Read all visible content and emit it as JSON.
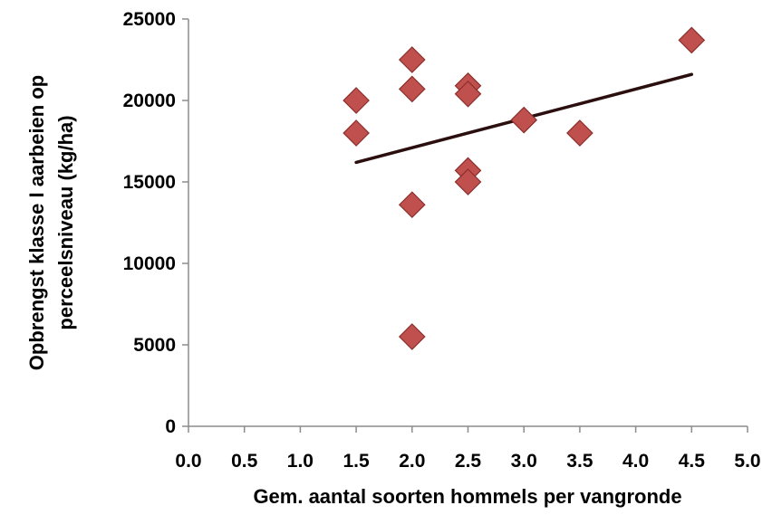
{
  "chart_data": {
    "type": "scatter",
    "title": "",
    "xlabel": "Gem. aantal soorten hommels per vangronde",
    "ylabel_lines": [
      "Opbrengst klasse I aarbeien op",
      "perceelsniveau  (kg/ha)"
    ],
    "xlim": [
      0,
      5
    ],
    "ylim": [
      0,
      25000
    ],
    "x_ticks": [
      "0.0",
      "0.5",
      "1.0",
      "1.5",
      "2.0",
      "2.5",
      "3.0",
      "3.5",
      "4.0",
      "4.5",
      "5.0"
    ],
    "y_ticks": [
      "0",
      "5000",
      "10000",
      "15000",
      "20000",
      "25000"
    ],
    "grid": false,
    "marker": "diamond",
    "marker_color": "#c0504d",
    "marker_edge_color": "#8b2f2c",
    "points": [
      {
        "x": 1.5,
        "y": 20000
      },
      {
        "x": 1.5,
        "y": 18000
      },
      {
        "x": 2.0,
        "y": 22500
      },
      {
        "x": 2.0,
        "y": 20700
      },
      {
        "x": 2.0,
        "y": 13600
      },
      {
        "x": 2.0,
        "y": 5500
      },
      {
        "x": 2.5,
        "y": 20900
      },
      {
        "x": 2.5,
        "y": 20400
      },
      {
        "x": 2.5,
        "y": 15700
      },
      {
        "x": 2.5,
        "y": 15000
      },
      {
        "x": 3.0,
        "y": 18800
      },
      {
        "x": 3.5,
        "y": 18000
      },
      {
        "x": 4.5,
        "y": 23700
      }
    ],
    "trendline": {
      "type": "linear",
      "color": "#2b0f0f",
      "x": [
        1.5,
        4.5
      ],
      "y": [
        16200,
        21600
      ]
    }
  }
}
